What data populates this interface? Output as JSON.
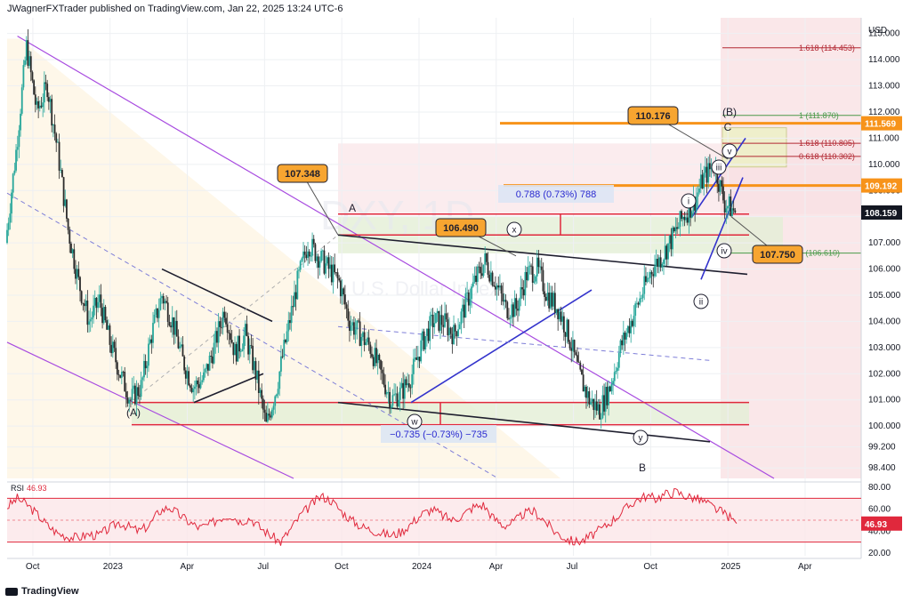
{
  "header": {
    "text": "JWagnerFXTrader published on TradingView.com, Jan 22, 2025 13:24 UTC-6"
  },
  "footer": {
    "brand": "TradingView"
  },
  "chart_data": {
    "type": "candlestick",
    "currency": "USD",
    "watermark": "DXY, 1D",
    "watermark_sub": "U.S. Dollar Index",
    "price_axis": {
      "min": 98.4,
      "max": 115.0,
      "ticks": [
        "115.000",
        "114.000",
        "113.000",
        "112.000",
        "111.000",
        "110.000",
        "109.000",
        "108.000",
        "107.000",
        "106.000",
        "105.000",
        "104.000",
        "103.000",
        "102.000",
        "101.000",
        "100.000",
        "99.200",
        "98.400"
      ]
    },
    "time_axis": {
      "ticks": [
        "Oct",
        "2023",
        "Apr",
        "Jul",
        "Oct",
        "2024",
        "Apr",
        "Jul",
        "Oct",
        "2025",
        "Apr"
      ]
    },
    "price_tags": [
      {
        "label": "111.569",
        "price": 111.569,
        "color": "#f7931a"
      },
      {
        "label": "109.192",
        "price": 109.192,
        "color": "#f7931a"
      },
      {
        "label": "108.159",
        "price": 108.159,
        "color": "#131722"
      }
    ],
    "fib_levels": [
      {
        "label": "1.618 (114.453)",
        "price": 114.453,
        "color": "#b22833"
      },
      {
        "label": "1 (111.870)",
        "price": 111.87,
        "color": "#4a9a4a"
      },
      {
        "label": "1.618 (110.805)",
        "price": 110.805,
        "color": "#b22833"
      },
      {
        "label": "0.618 (110.302)",
        "price": 110.302,
        "color": "#b22833"
      },
      {
        "label": "1 (106.610)",
        "price": 106.61,
        "color": "#4a9a4a"
      }
    ],
    "callouts": [
      {
        "label": "107.348",
        "price": 107.348
      },
      {
        "label": "106.490",
        "price": 106.49
      },
      {
        "label": "110.176",
        "price": 110.176
      },
      {
        "label": "107.750",
        "price": 107.75
      }
    ],
    "measurements": [
      {
        "label": "0.788 (0.73%) 788"
      },
      {
        "label": "−0.735 (−0.73%) −735"
      }
    ],
    "wave_labels": [
      "(A)",
      "A",
      "B",
      "C",
      "(B)",
      "w",
      "x",
      "y",
      "i",
      "ii",
      "iii",
      "iv",
      "v"
    ],
    "closes": [
      107.0,
      110.5,
      114.5,
      112.0,
      113.0,
      110.5,
      107.5,
      105.5,
      104.0,
      104.8,
      103.2,
      102.0,
      101.0,
      101.5,
      103.5,
      105.0,
      104.0,
      102.5,
      101.5,
      101.8,
      103.0,
      104.5,
      102.8,
      103.5,
      102.0,
      100.0,
      101.5,
      103.5,
      105.5,
      107.0,
      106.5,
      106.0,
      105.5,
      104.0,
      103.5,
      103.0,
      102.0,
      101.0,
      101.3,
      102.0,
      103.2,
      104.0,
      104.0,
      103.5,
      104.5,
      105.5,
      106.3,
      105.5,
      104.5,
      104.5,
      105.8,
      106.0,
      105.0,
      104.5,
      103.5,
      102.0,
      101.0,
      100.6,
      101.5,
      103.0,
      104.0,
      105.0,
      106.0,
      106.5,
      107.2,
      108.0,
      108.5,
      109.5,
      110.0,
      108.5,
      108.2
    ],
    "rsi": {
      "label": "RSI",
      "value": "46.93",
      "ticks": [
        "80.00",
        "60.00",
        "40.00",
        "20.00"
      ],
      "levels": [
        70,
        30
      ],
      "min": 15,
      "max": 85,
      "series": [
        62,
        70,
        64,
        55,
        45,
        38,
        35,
        34,
        37,
        36,
        42,
        48,
        44,
        40,
        45,
        58,
        62,
        55,
        48,
        43,
        46,
        52,
        55,
        49,
        52,
        43,
        36,
        30,
        42,
        55,
        64,
        72,
        68,
        58,
        50,
        44,
        41,
        38,
        36,
        40,
        48,
        56,
        60,
        54,
        50,
        55,
        62,
        64,
        52,
        45,
        48,
        56,
        58,
        50,
        40,
        34,
        30,
        32,
        38,
        44,
        52,
        60,
        68,
        72,
        70,
        74,
        76,
        72,
        70,
        66,
        60,
        55,
        47
      ]
    }
  }
}
